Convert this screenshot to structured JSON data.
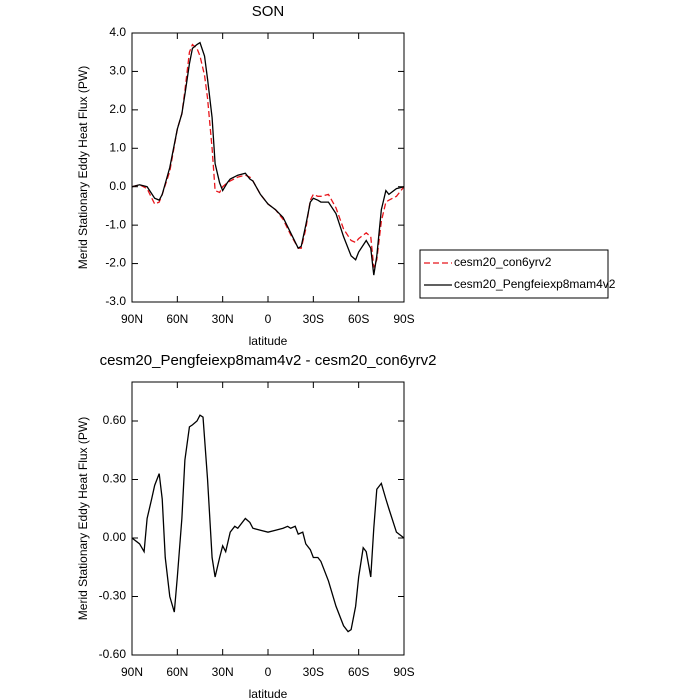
{
  "chart_data": [
    {
      "type": "line",
      "title": "SON",
      "xlabel": "latitude",
      "ylabel": "Merid Stationary Eddy Heat Flux (PW)",
      "x": [
        90,
        85,
        80,
        75,
        72,
        70,
        65,
        60,
        57,
        55,
        52,
        50,
        47,
        45,
        42,
        40,
        37,
        35,
        32,
        30,
        27,
        25,
        20,
        15,
        12,
        10,
        5,
        0,
        -5,
        -10,
        -15,
        -20,
        -22,
        -25,
        -28,
        -30,
        -33,
        -35,
        -40,
        -45,
        -50,
        -55,
        -58,
        -60,
        -65,
        -68,
        -70,
        -72,
        -75,
        -78,
        -80,
        -85,
        -90
      ],
      "series": [
        {
          "name": "cesm20_con6yrv2",
          "color": "#e8151b",
          "dash": true,
          "values": [
            0,
            0.05,
            -0.05,
            -0.45,
            -0.4,
            -0.2,
            0.4,
            1.5,
            1.9,
            2.5,
            3.5,
            3.7,
            3.6,
            3.4,
            2.9,
            2.3,
            1.0,
            -0.1,
            -0.15,
            0.0,
            0.1,
            0.15,
            0.25,
            0.3,
            0.25,
            0.15,
            -0.2,
            -0.45,
            -0.6,
            -0.85,
            -1.25,
            -1.6,
            -1.6,
            -1.1,
            -0.35,
            -0.2,
            -0.25,
            -0.25,
            -0.2,
            -0.55,
            -1.1,
            -1.4,
            -1.45,
            -1.35,
            -1.2,
            -1.3,
            -2.1,
            -1.9,
            -0.9,
            -0.4,
            -0.35,
            -0.25,
            0
          ]
        },
        {
          "name": "cesm20_Pengfeiexp8mam4v2",
          "color": "#000000",
          "dash": false,
          "values": [
            0,
            0.05,
            0,
            -0.3,
            -0.35,
            -0.2,
            0.5,
            1.5,
            1.9,
            2.4,
            3.2,
            3.6,
            3.7,
            3.75,
            3.4,
            2.8,
            1.8,
            0.6,
            0.1,
            -0.1,
            0.1,
            0.2,
            0.3,
            0.35,
            0.2,
            0.15,
            -0.2,
            -0.45,
            -0.6,
            -0.8,
            -1.2,
            -1.6,
            -1.55,
            -1.0,
            -0.4,
            -0.3,
            -0.35,
            -0.4,
            -0.4,
            -0.7,
            -1.3,
            -1.8,
            -1.9,
            -1.7,
            -1.4,
            -1.6,
            -2.3,
            -1.8,
            -0.6,
            -0.1,
            -0.2,
            -0.05,
            0
          ]
        }
      ],
      "xlim": [
        90,
        -90
      ],
      "xticks": [
        {
          "value": 90,
          "label": "90N"
        },
        {
          "value": 60,
          "label": "60N"
        },
        {
          "value": 30,
          "label": "30N"
        },
        0,
        {
          "value": -30,
          "label": "30S"
        },
        {
          "value": -60,
          "label": "60S"
        },
        {
          "value": -90,
          "label": "90S"
        }
      ],
      "ylim": [
        -3,
        4
      ],
      "yticks": [
        {
          "value": -3,
          "label": "-3.0"
        },
        {
          "value": -2,
          "label": "-2.0"
        },
        {
          "value": -1,
          "label": "-1.0"
        },
        {
          "value": 0,
          "label": "0.0"
        },
        {
          "value": 1,
          "label": "1.0"
        },
        {
          "value": 2,
          "label": "2.0"
        },
        {
          "value": 3,
          "label": "3.0"
        },
        {
          "value": 4,
          "label": "4.0"
        }
      ],
      "legend": "right"
    },
    {
      "type": "line",
      "title": "cesm20_Pengfeiexp8mam4v2 - cesm20_con6yrv2",
      "xlabel": "latitude",
      "ylabel": "Merid Stationary Eddy Heat Flux (PW)",
      "x": [
        90,
        85,
        82,
        80,
        77,
        75,
        72,
        70,
        68,
        65,
        62,
        60,
        57,
        55,
        52,
        50,
        47,
        45,
        43,
        40,
        37,
        35,
        32,
        30,
        28,
        25,
        22,
        20,
        15,
        12,
        10,
        5,
        0,
        -5,
        -10,
        -13,
        -15,
        -18,
        -20,
        -23,
        -25,
        -28,
        -30,
        -33,
        -35,
        -40,
        -45,
        -50,
        -53,
        -55,
        -58,
        -60,
        -63,
        -65,
        -68,
        -70,
        -72,
        -75,
        -78,
        -80,
        -85,
        -90
      ],
      "color": "#000000",
      "values": [
        0,
        -0.03,
        -0.07,
        0.1,
        0.2,
        0.27,
        0.33,
        0.2,
        -0.1,
        -0.3,
        -0.38,
        -0.2,
        0.1,
        0.4,
        0.57,
        0.58,
        0.6,
        0.63,
        0.62,
        0.3,
        -0.1,
        -0.2,
        -0.1,
        -0.04,
        -0.07,
        0.03,
        0.06,
        0.05,
        0.1,
        0.08,
        0.05,
        0.04,
        0.03,
        0.04,
        0.05,
        0.06,
        0.05,
        0.06,
        0.02,
        0.03,
        -0.03,
        -0.06,
        -0.1,
        -0.1,
        -0.12,
        -0.22,
        -0.35,
        -0.45,
        -0.48,
        -0.47,
        -0.35,
        -0.2,
        -0.05,
        -0.07,
        -0.2,
        0.05,
        0.25,
        0.28,
        0.2,
        0.15,
        0.03,
        0
      ],
      "xlim": [
        90,
        -90
      ],
      "xticks": [
        {
          "value": 90,
          "label": "90N"
        },
        {
          "value": 60,
          "label": "60N"
        },
        {
          "value": 30,
          "label": "30N"
        },
        0,
        {
          "value": -30,
          "label": "30S"
        },
        {
          "value": -60,
          "label": "60S"
        },
        {
          "value": -90,
          "label": "90S"
        }
      ],
      "ylim": [
        -0.6,
        0.8
      ],
      "yticks": [
        {
          "value": -0.6,
          "label": "-0.60"
        },
        {
          "value": -0.3,
          "label": "-0.30"
        },
        {
          "value": 0,
          "label": "0.00"
        },
        {
          "value": 0.3,
          "label": "0.30"
        },
        {
          "value": 0.6,
          "label": "0.60"
        }
      ]
    }
  ]
}
